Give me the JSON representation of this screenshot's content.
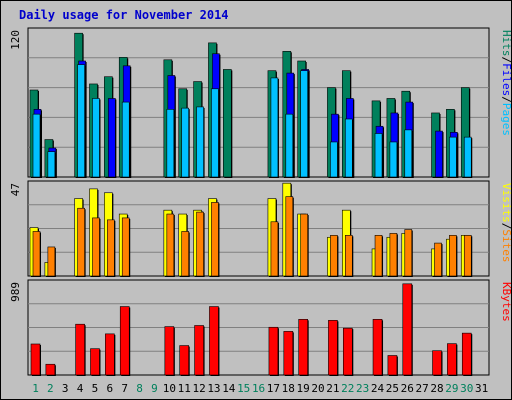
{
  "title": "Daily usage for November 2014",
  "colors": {
    "background": "#c0c0c0",
    "hits": "#00805c",
    "files": "#0000ff",
    "pages": "#00c0ff",
    "visits": "#ffff00",
    "sites": "#ff8000",
    "kbytes": "#ff0000",
    "weekend_label": "#00805c",
    "weekday_label": "#000000"
  },
  "chart_data": [
    {
      "type": "bar",
      "title": "Daily usage for November 2014",
      "categories": [
        "1",
        "2",
        "3",
        "4",
        "5",
        "6",
        "7",
        "8",
        "9",
        "10",
        "11",
        "12",
        "13",
        "14",
        "15",
        "16",
        "17",
        "18",
        "19",
        "20",
        "21",
        "22",
        "23",
        "24",
        "25",
        "26",
        "27",
        "28",
        "29",
        "30",
        "31"
      ],
      "weekend_days": [
        "1",
        "2",
        "8",
        "9",
        "15",
        "16",
        "22",
        "23",
        "29",
        "30"
      ],
      "y_axis_label": "120",
      "ylim": [
        0,
        120
      ],
      "legend_right": [
        {
          "name": "Pages",
          "color": "#00c0ff"
        },
        {
          "name": "/",
          "color": "#000000"
        },
        {
          "name": "Files",
          "color": "#0000ff"
        },
        {
          "name": "/",
          "color": "#000000"
        },
        {
          "name": "Hits",
          "color": "#00805c"
        }
      ],
      "series": [
        {
          "key": "hits",
          "values": [
            72,
            31,
            0,
            119,
            77,
            83,
            99,
            0,
            0,
            97,
            73,
            79,
            111,
            89,
            0,
            0,
            88,
            104,
            96,
            0,
            74,
            88,
            0,
            63,
            65,
            71,
            0,
            53,
            56,
            74,
            0
          ]
        },
        {
          "key": "files",
          "values": [
            56,
            24,
            0,
            96,
            0,
            65,
            92,
            0,
            0,
            84,
            0,
            0,
            102,
            0,
            0,
            0,
            0,
            86,
            89,
            0,
            52,
            65,
            0,
            42,
            53,
            62,
            0,
            38,
            37,
            0,
            0
          ]
        },
        {
          "key": "pages",
          "values": [
            52,
            21,
            0,
            93,
            65,
            0,
            62,
            0,
            0,
            56,
            57,
            58,
            73,
            0,
            0,
            0,
            82,
            52,
            88,
            0,
            29,
            48,
            0,
            36,
            29,
            39,
            0,
            0,
            33,
            33,
            0
          ]
        }
      ]
    },
    {
      "type": "bar",
      "categories": [
        "1",
        "2",
        "3",
        "4",
        "5",
        "6",
        "7",
        "8",
        "9",
        "10",
        "11",
        "12",
        "13",
        "14",
        "15",
        "16",
        "17",
        "18",
        "19",
        "20",
        "21",
        "22",
        "23",
        "24",
        "25",
        "26",
        "27",
        "28",
        "29",
        "30",
        "31"
      ],
      "y_axis_label": "47",
      "ylim": [
        0,
        47
      ],
      "legend_right": [
        {
          "name": "Sites",
          "color": "#ff8000"
        },
        {
          "name": "/",
          "color": "#000000"
        },
        {
          "name": "Visits",
          "color": "#ffff00"
        }
      ],
      "series": [
        {
          "key": "visits",
          "values": [
            25,
            7,
            0,
            40,
            45,
            43,
            32,
            0,
            0,
            34,
            32,
            34,
            40,
            0,
            0,
            0,
            40,
            48,
            32,
            0,
            20,
            34,
            0,
            14,
            20,
            22,
            0,
            14,
            19,
            21,
            0
          ]
        },
        {
          "key": "sites",
          "values": [
            23,
            15,
            0,
            35,
            30,
            29,
            30,
            0,
            0,
            32,
            23,
            33,
            38,
            0,
            0,
            0,
            28,
            41,
            32,
            0,
            21,
            21,
            0,
            21,
            22,
            24,
            0,
            17,
            21,
            21,
            0
          ]
        }
      ]
    },
    {
      "type": "bar",
      "categories": [
        "1",
        "2",
        "3",
        "4",
        "5",
        "6",
        "7",
        "8",
        "9",
        "10",
        "11",
        "12",
        "13",
        "14",
        "15",
        "16",
        "17",
        "18",
        "19",
        "20",
        "21",
        "22",
        "23",
        "24",
        "25",
        "26",
        "27",
        "28",
        "29",
        "30",
        "31"
      ],
      "y_axis_label": "989",
      "ylim": [
        0,
        989
      ],
      "legend_right": [
        {
          "name": "KBytes",
          "color": "#ff0000"
        }
      ],
      "series": [
        {
          "key": "kbytes",
          "values": [
            337,
            117,
            0,
            552,
            286,
            447,
            744,
            0,
            0,
            526,
            320,
            538,
            744,
            0,
            0,
            0,
            519,
            474,
            605,
            0,
            594,
            509,
            0,
            605,
            212,
            991,
            0,
            264,
            341,
            455,
            0
          ]
        }
      ]
    }
  ]
}
